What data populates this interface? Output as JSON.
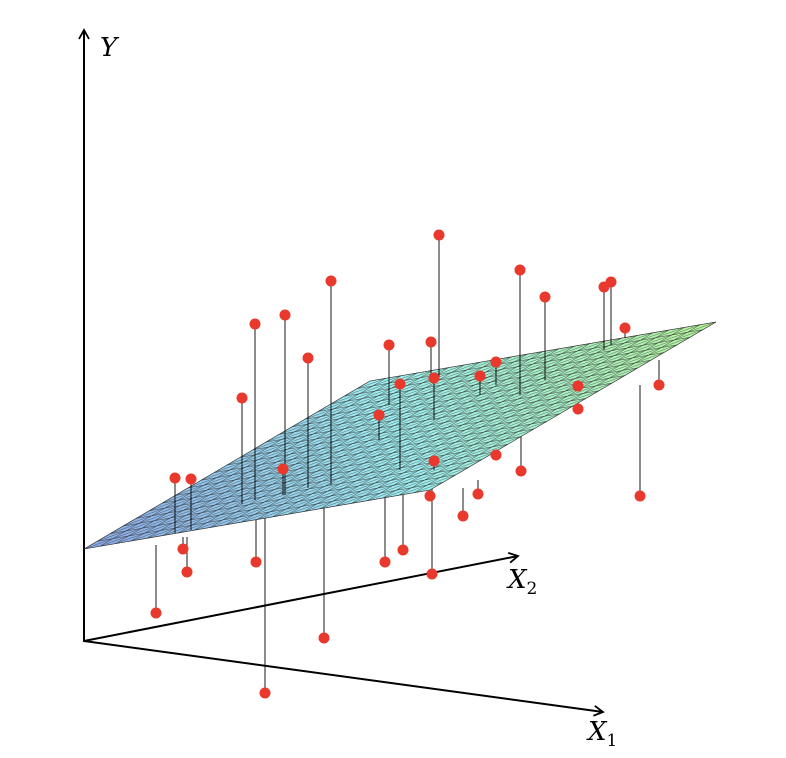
{
  "axes": {
    "y": {
      "label": "Y"
    },
    "x2": {
      "label": "X",
      "subscript": "2"
    },
    "x1": {
      "label": "X",
      "subscript": "1"
    }
  }
}
